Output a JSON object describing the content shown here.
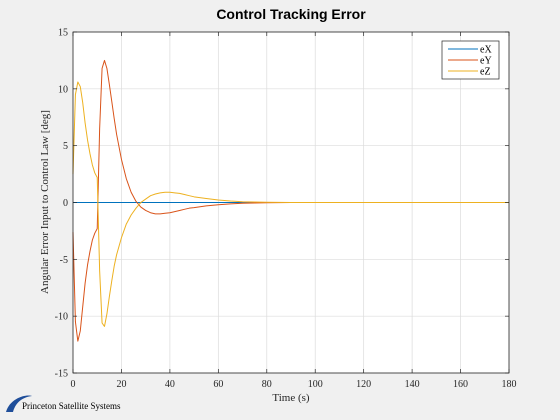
{
  "chart_data": {
    "type": "line",
    "title": "Control Tracking Error",
    "xlabel": "Time (s)",
    "ylabel": "Angular Error Input to Control Law [deg]",
    "xlim": [
      0,
      180
    ],
    "ylim": [
      -15,
      15
    ],
    "xticks": [
      0,
      20,
      40,
      60,
      80,
      100,
      120,
      140,
      160,
      180
    ],
    "yticks": [
      -15,
      -10,
      -5,
      0,
      5,
      10,
      15
    ],
    "grid": true,
    "legend_position": "top-right",
    "x": [
      0,
      1,
      2,
      3,
      4,
      5,
      6,
      7,
      8,
      9,
      10,
      11,
      12,
      13,
      14,
      15,
      16,
      17,
      18,
      20,
      22,
      24,
      26,
      28,
      30,
      32,
      34,
      36,
      38,
      40,
      42,
      44,
      46,
      48,
      50,
      55,
      60,
      65,
      70,
      75,
      80,
      90,
      100,
      110,
      120,
      140,
      160,
      180
    ],
    "series": [
      {
        "name": "eX",
        "color": "#0072bd",
        "values": [
          0,
          0,
          0,
          0,
          0,
          0,
          0,
          0,
          0,
          0,
          0,
          0,
          0,
          0,
          0,
          0,
          0,
          0,
          0,
          0,
          0,
          0,
          0,
          0,
          0,
          0,
          0,
          0,
          0,
          0,
          0,
          0,
          0,
          0,
          0,
          0,
          0,
          0,
          0,
          0,
          0,
          0,
          0,
          0,
          0,
          0,
          0,
          0
        ]
      },
      {
        "name": "eY",
        "color": "#d95319",
        "values": [
          -2.6,
          -10.5,
          -12.2,
          -11.3,
          -9.2,
          -7.1,
          -5.5,
          -4.3,
          -3.3,
          -2.7,
          -2.3,
          6.5,
          11.8,
          12.5,
          11.8,
          10.4,
          8.9,
          7.4,
          6.0,
          3.8,
          2.1,
          0.9,
          0.1,
          -0.4,
          -0.7,
          -0.9,
          -1.0,
          -1.0,
          -0.95,
          -0.9,
          -0.8,
          -0.7,
          -0.6,
          -0.5,
          -0.45,
          -0.3,
          -0.2,
          -0.12,
          -0.07,
          -0.04,
          -0.02,
          0,
          0,
          0,
          0,
          0,
          0,
          0
        ]
      },
      {
        "name": "eZ",
        "color": "#edb120",
        "values": [
          2.5,
          9.5,
          10.6,
          10.2,
          8.8,
          7.0,
          5.5,
          4.3,
          3.3,
          2.6,
          2.2,
          -6.0,
          -10.6,
          -10.9,
          -9.8,
          -8.3,
          -6.9,
          -5.6,
          -4.6,
          -3.1,
          -1.9,
          -1.1,
          -0.5,
          0,
          0.3,
          0.6,
          0.75,
          0.85,
          0.9,
          0.9,
          0.85,
          0.8,
          0.7,
          0.6,
          0.5,
          0.35,
          0.22,
          0.13,
          0.07,
          0.04,
          0.02,
          0,
          0,
          0,
          0,
          0,
          0,
          0
        ]
      }
    ]
  },
  "footer": {
    "logo_text": "Princeton Satellite Systems"
  }
}
